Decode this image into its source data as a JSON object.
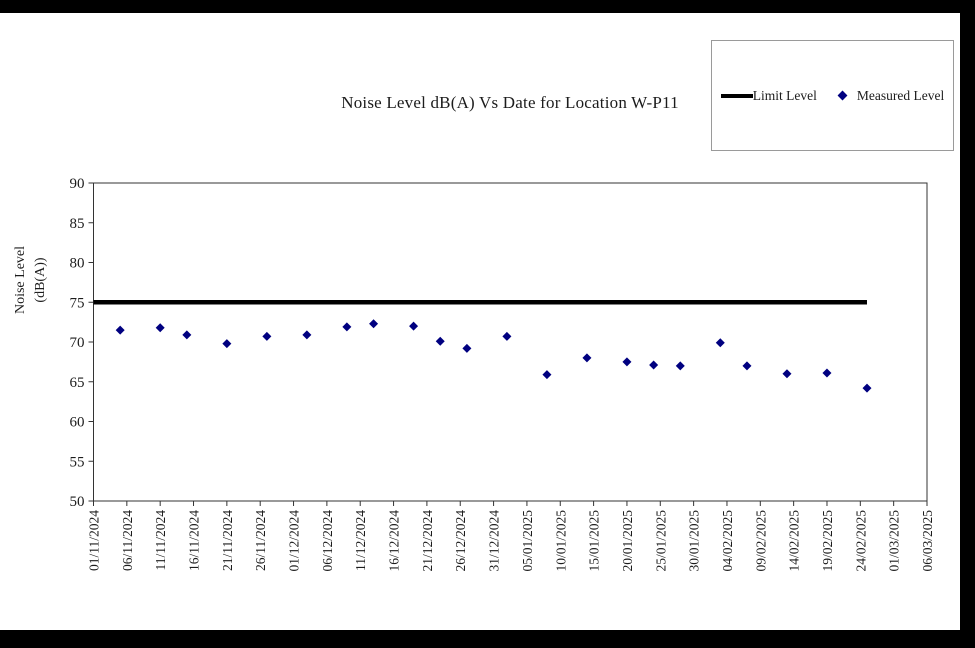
{
  "window": {
    "background_color": "#000000",
    "page_color": "#ffffff"
  },
  "chart": {
    "title": "Noise Level dB(A) Vs Date for Location W-P11",
    "y_axis_title_line1": "Noise Level",
    "y_axis_title_line2": "(dB(A))"
  },
  "legend": {
    "limit_label": "Limit Level",
    "measured_label": "Measured Level"
  },
  "colors": {
    "limit_line": "#000000",
    "measured_marker": "#000080",
    "axis": "#333333",
    "legend_border": "#9a9a9a",
    "text": "#1c1c1c"
  },
  "chart_data": {
    "type": "scatter",
    "title": "Noise Level dB(A) Vs Date for Location W-P11",
    "xlabel": "",
    "ylabel": "Noise Level (dB(A))",
    "ylim": [
      50,
      90
    ],
    "y_ticks": [
      50,
      55,
      60,
      65,
      70,
      75,
      80,
      85,
      90
    ],
    "x_tick_labels": [
      "01/11/2024",
      "06/11/2024",
      "11/11/2024",
      "16/11/2024",
      "21/11/2024",
      "26/11/2024",
      "01/12/2024",
      "06/12/2024",
      "11/12/2024",
      "16/12/2024",
      "21/12/2024",
      "26/12/2024",
      "31/12/2024",
      "05/01/2025",
      "10/01/2025",
      "15/01/2025",
      "20/01/2025",
      "25/01/2025",
      "30/01/2025",
      "04/02/2025",
      "09/02/2025",
      "14/02/2025",
      "19/02/2025",
      "24/02/2025",
      "01/03/2025",
      "06/03/2025"
    ],
    "grid": false,
    "legend_position": "top-right",
    "series": [
      {
        "name": "Limit Level",
        "type": "line",
        "color": "#000000",
        "value": 75,
        "x_start": "01/11/2024",
        "x_end": "25/02/2025"
      },
      {
        "name": "Measured Level",
        "type": "scatter",
        "marker": "diamond",
        "color": "#000080",
        "points": [
          {
            "date": "05/11/2024",
            "value": 71.5
          },
          {
            "date": "11/11/2024",
            "value": 71.8
          },
          {
            "date": "15/11/2024",
            "value": 70.9
          },
          {
            "date": "21/11/2024",
            "value": 69.8
          },
          {
            "date": "27/11/2024",
            "value": 70.7
          },
          {
            "date": "03/12/2024",
            "value": 70.9
          },
          {
            "date": "09/12/2024",
            "value": 71.9
          },
          {
            "date": "13/12/2024",
            "value": 72.3
          },
          {
            "date": "19/12/2024",
            "value": 72.0
          },
          {
            "date": "23/12/2024",
            "value": 70.1
          },
          {
            "date": "27/12/2024",
            "value": 69.2
          },
          {
            "date": "02/01/2025",
            "value": 70.7
          },
          {
            "date": "08/01/2025",
            "value": 65.9
          },
          {
            "date": "14/01/2025",
            "value": 68.0
          },
          {
            "date": "20/01/2025",
            "value": 67.5
          },
          {
            "date": "24/01/2025",
            "value": 67.1
          },
          {
            "date": "28/01/2025",
            "value": 67.0
          },
          {
            "date": "03/02/2025",
            "value": 69.9
          },
          {
            "date": "07/02/2025",
            "value": 67.0
          },
          {
            "date": "13/02/2025",
            "value": 66.0
          },
          {
            "date": "19/02/2025",
            "value": 66.1
          },
          {
            "date": "25/02/2025",
            "value": 64.2
          }
        ]
      }
    ]
  }
}
